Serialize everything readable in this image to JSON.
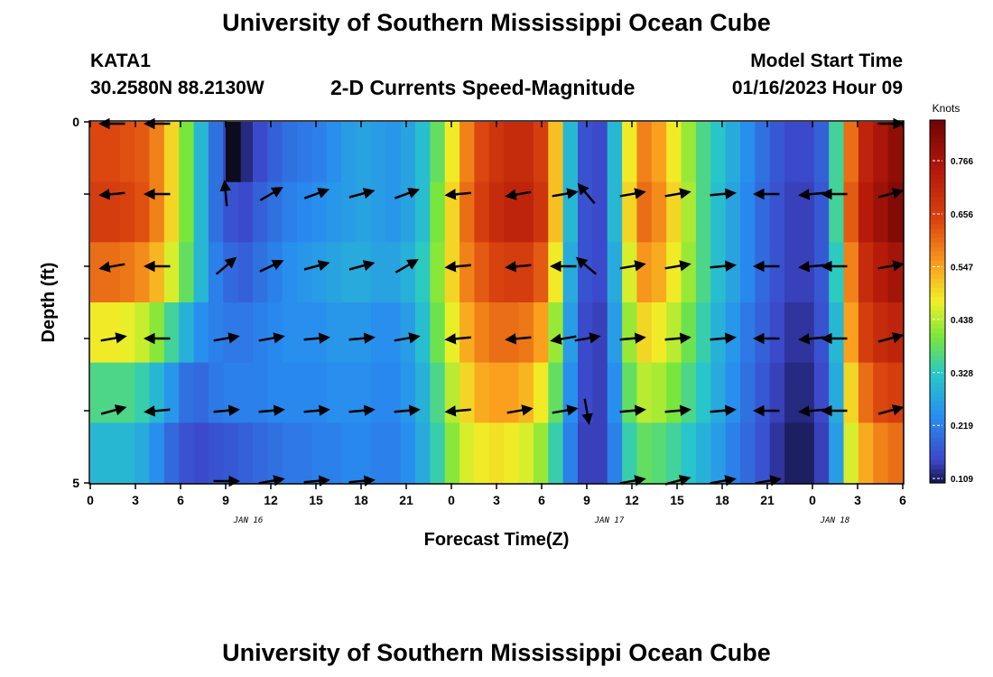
{
  "header": {
    "title": "University of Southern Mississippi Ocean Cube",
    "station": "KATA1",
    "coords": "30.2580N  88.2130W",
    "subtitle": "2-D Currents Speed-Magnitude",
    "model_label": "Model Start Time",
    "model_time": "01/16/2023 Hour 09"
  },
  "footer": {
    "title": "University of Southern Mississippi Ocean Cube"
  },
  "chart_data": {
    "type": "heatmap",
    "xlabel": "Forecast Time(Z)",
    "ylabel": "Depth (ft)",
    "x_ticks": [
      "0",
      "3",
      "6",
      "9",
      "12",
      "15",
      "18",
      "21",
      "0",
      "3",
      "6",
      "9",
      "12",
      "15",
      "18",
      "21",
      "0",
      "3",
      "6"
    ],
    "date_labels": [
      {
        "label": "JAN 16",
        "hour": 10.5
      },
      {
        "label": "JAN 17",
        "hour": 34.5
      },
      {
        "label": "JAN 18",
        "hour": 49.5
      }
    ],
    "x_range_hours": [
      0,
      54
    ],
    "y_ticks": [
      "0",
      "5"
    ],
    "ylim": [
      0,
      5
    ],
    "colorbar": {
      "unit": "Knots",
      "ticks": [
        "0.109",
        "0.219",
        "0.328",
        "0.438",
        "0.547",
        "0.656",
        "0.766"
      ],
      "range": [
        0.1,
        0.85
      ]
    },
    "speed_hourly": [
      [
        0.64,
        0.64,
        0.63,
        0.62,
        0.58,
        0.5,
        0.4,
        0.3,
        0.2,
        0.14,
        0.12,
        0.15,
        0.18,
        0.2,
        0.21,
        0.22,
        0.24,
        0.26,
        0.27,
        0.26,
        0.25,
        0.27,
        0.31,
        0.38,
        0.48,
        0.58,
        0.64,
        0.68,
        0.7,
        0.7,
        0.66,
        0.52,
        0.3,
        0.16,
        0.15,
        0.3,
        0.48,
        0.58,
        0.55,
        0.48,
        0.42,
        0.36,
        0.32,
        0.28,
        0.24,
        0.2,
        0.17,
        0.15,
        0.15,
        0.18,
        0.35,
        0.6,
        0.72,
        0.76,
        0.8
      ],
      [
        0.66,
        0.66,
        0.65,
        0.63,
        0.58,
        0.5,
        0.4,
        0.3,
        0.2,
        0.16,
        0.15,
        0.18,
        0.2,
        0.22,
        0.23,
        0.24,
        0.25,
        0.26,
        0.27,
        0.26,
        0.25,
        0.27,
        0.31,
        0.4,
        0.5,
        0.6,
        0.66,
        0.7,
        0.72,
        0.72,
        0.68,
        0.52,
        0.3,
        0.16,
        0.15,
        0.3,
        0.5,
        0.6,
        0.57,
        0.5,
        0.43,
        0.36,
        0.31,
        0.27,
        0.23,
        0.19,
        0.16,
        0.14,
        0.14,
        0.17,
        0.35,
        0.62,
        0.74,
        0.78,
        0.82
      ],
      [
        0.6,
        0.6,
        0.59,
        0.57,
        0.53,
        0.46,
        0.38,
        0.3,
        0.22,
        0.19,
        0.18,
        0.2,
        0.22,
        0.24,
        0.25,
        0.26,
        0.27,
        0.28,
        0.28,
        0.27,
        0.27,
        0.29,
        0.33,
        0.41,
        0.5,
        0.58,
        0.62,
        0.65,
        0.66,
        0.66,
        0.62,
        0.48,
        0.28,
        0.16,
        0.15,
        0.28,
        0.46,
        0.56,
        0.54,
        0.48,
        0.42,
        0.36,
        0.31,
        0.27,
        0.23,
        0.19,
        0.16,
        0.14,
        0.14,
        0.17,
        0.33,
        0.58,
        0.7,
        0.74,
        0.77
      ],
      [
        0.48,
        0.48,
        0.47,
        0.45,
        0.41,
        0.35,
        0.29,
        0.24,
        0.22,
        0.21,
        0.21,
        0.22,
        0.23,
        0.24,
        0.24,
        0.24,
        0.25,
        0.25,
        0.25,
        0.24,
        0.24,
        0.26,
        0.31,
        0.39,
        0.47,
        0.54,
        0.58,
        0.6,
        0.6,
        0.59,
        0.55,
        0.42,
        0.26,
        0.15,
        0.14,
        0.26,
        0.42,
        0.5,
        0.48,
        0.44,
        0.39,
        0.34,
        0.29,
        0.25,
        0.21,
        0.18,
        0.15,
        0.13,
        0.13,
        0.16,
        0.3,
        0.55,
        0.66,
        0.7,
        0.72
      ],
      [
        0.36,
        0.36,
        0.36,
        0.34,
        0.3,
        0.25,
        0.2,
        0.19,
        0.21,
        0.22,
        0.22,
        0.22,
        0.23,
        0.23,
        0.23,
        0.23,
        0.24,
        0.24,
        0.24,
        0.23,
        0.23,
        0.25,
        0.29,
        0.36,
        0.44,
        0.5,
        0.54,
        0.55,
        0.55,
        0.53,
        0.48,
        0.38,
        0.24,
        0.15,
        0.14,
        0.24,
        0.38,
        0.44,
        0.43,
        0.4,
        0.36,
        0.32,
        0.28,
        0.24,
        0.2,
        0.17,
        0.14,
        0.12,
        0.12,
        0.15,
        0.28,
        0.5,
        0.6,
        0.64,
        0.66
      ],
      [
        0.3,
        0.3,
        0.3,
        0.28,
        0.24,
        0.19,
        0.16,
        0.15,
        0.16,
        0.17,
        0.18,
        0.19,
        0.2,
        0.21,
        0.21,
        0.22,
        0.22,
        0.23,
        0.23,
        0.22,
        0.22,
        0.24,
        0.28,
        0.34,
        0.41,
        0.46,
        0.48,
        0.49,
        0.48,
        0.46,
        0.42,
        0.34,
        0.22,
        0.14,
        0.14,
        0.22,
        0.34,
        0.38,
        0.37,
        0.35,
        0.32,
        0.29,
        0.26,
        0.22,
        0.19,
        0.16,
        0.13,
        0.11,
        0.11,
        0.14,
        0.26,
        0.46,
        0.54,
        0.58,
        0.6
      ]
    ],
    "deep_spike": {
      "hour_from": 9,
      "hour_to": 10,
      "depth_row": 0,
      "value": 0.85
    },
    "arrow_hours": [
      1.5,
      4.5,
      9,
      12,
      15,
      18,
      21,
      24.5,
      28.5,
      31.5,
      33,
      36,
      39,
      42,
      45,
      48,
      49.5,
      54
    ],
    "arrow_depths": [
      0,
      1,
      2,
      3,
      4,
      5
    ],
    "arrow_directions_deg": [
      [
        180,
        180,
        null,
        null,
        null,
        null,
        null,
        null,
        null,
        null,
        null,
        null,
        null,
        null,
        null,
        null,
        null,
        0
      ],
      [
        185,
        180,
        95,
        30,
        20,
        15,
        20,
        185,
        190,
        10,
        130,
        10,
        10,
        5,
        180,
        185,
        180,
        15
      ],
      [
        190,
        180,
        40,
        25,
        15,
        15,
        30,
        185,
        185,
        180,
        140,
        10,
        10,
        5,
        180,
        185,
        180,
        10
      ],
      [
        10,
        180,
        10,
        10,
        5,
        5,
        10,
        185,
        185,
        190,
        10,
        5,
        5,
        5,
        180,
        185,
        180,
        15
      ],
      [
        15,
        185,
        5,
        5,
        5,
        5,
        5,
        185,
        10,
        10,
        280,
        5,
        5,
        5,
        180,
        185,
        180,
        15
      ],
      [
        null,
        null,
        0,
        10,
        5,
        5,
        null,
        null,
        null,
        null,
        null,
        10,
        15,
        10,
        10,
        null,
        null,
        null
      ]
    ]
  }
}
